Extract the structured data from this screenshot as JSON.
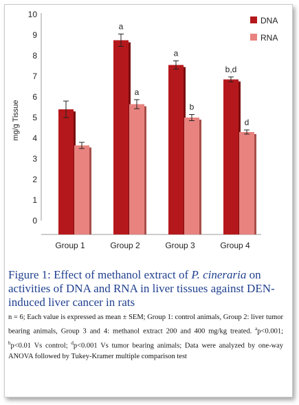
{
  "colors": {
    "dna": "#b5181c",
    "dna_dark": "#7a0e10",
    "rna": "#e8837f",
    "rna_dark": "#a84e4a",
    "caption_title": "#1f3f8f"
  },
  "chart_data": {
    "type": "bar",
    "ylabel": "mg/g Tissue",
    "ylim": [
      0,
      10
    ],
    "yticks": [
      "0",
      "1",
      "2",
      "3",
      "4",
      "5",
      "6",
      "7",
      "8",
      "9",
      "10"
    ],
    "categories": [
      "Group 1",
      "Group 2",
      "Group 3",
      "Group 4"
    ],
    "legend_position": "top-right",
    "grid": false,
    "series": [
      {
        "name": "DNA",
        "values": [
          5.4,
          8.75,
          7.55,
          6.85
        ],
        "errors": [
          0.4,
          0.3,
          0.2,
          0.12
        ],
        "labels": [
          "",
          "a",
          "a",
          "b,d"
        ]
      },
      {
        "name": "RNA",
        "values": [
          3.65,
          5.65,
          5.0,
          4.3
        ],
        "errors": [
          0.15,
          0.22,
          0.15,
          0.1
        ],
        "labels": [
          "",
          "a",
          "b",
          "d"
        ]
      }
    ]
  },
  "caption": {
    "title_part1": "Figure 1: Effect of methanol extract of ",
    "title_species": "P. cineraria",
    "title_part2": " on activities of DNA and RNA in liver tissues against DEN-induced liver cancer in rats",
    "note_part1": "n = 6; Each  value  is expressed as  mean  ± SEM; Group  1: control animals, Group 2: liver tumor bearing animals, Group 3 and 4: methanol extract 200 and 400 mg/kg  treated. ",
    "sup_a": "a",
    "note_part2": "p<0.001; ",
    "sup_b": "b",
    "note_part3": "p<0.01 Vs control; ",
    "sup_d": "d",
    "note_part4": "p<0.001 Vs tumor bearing animals; Data were analyzed by one-way ANOVA followed by Tukey-Kramer multiple comparison test"
  }
}
